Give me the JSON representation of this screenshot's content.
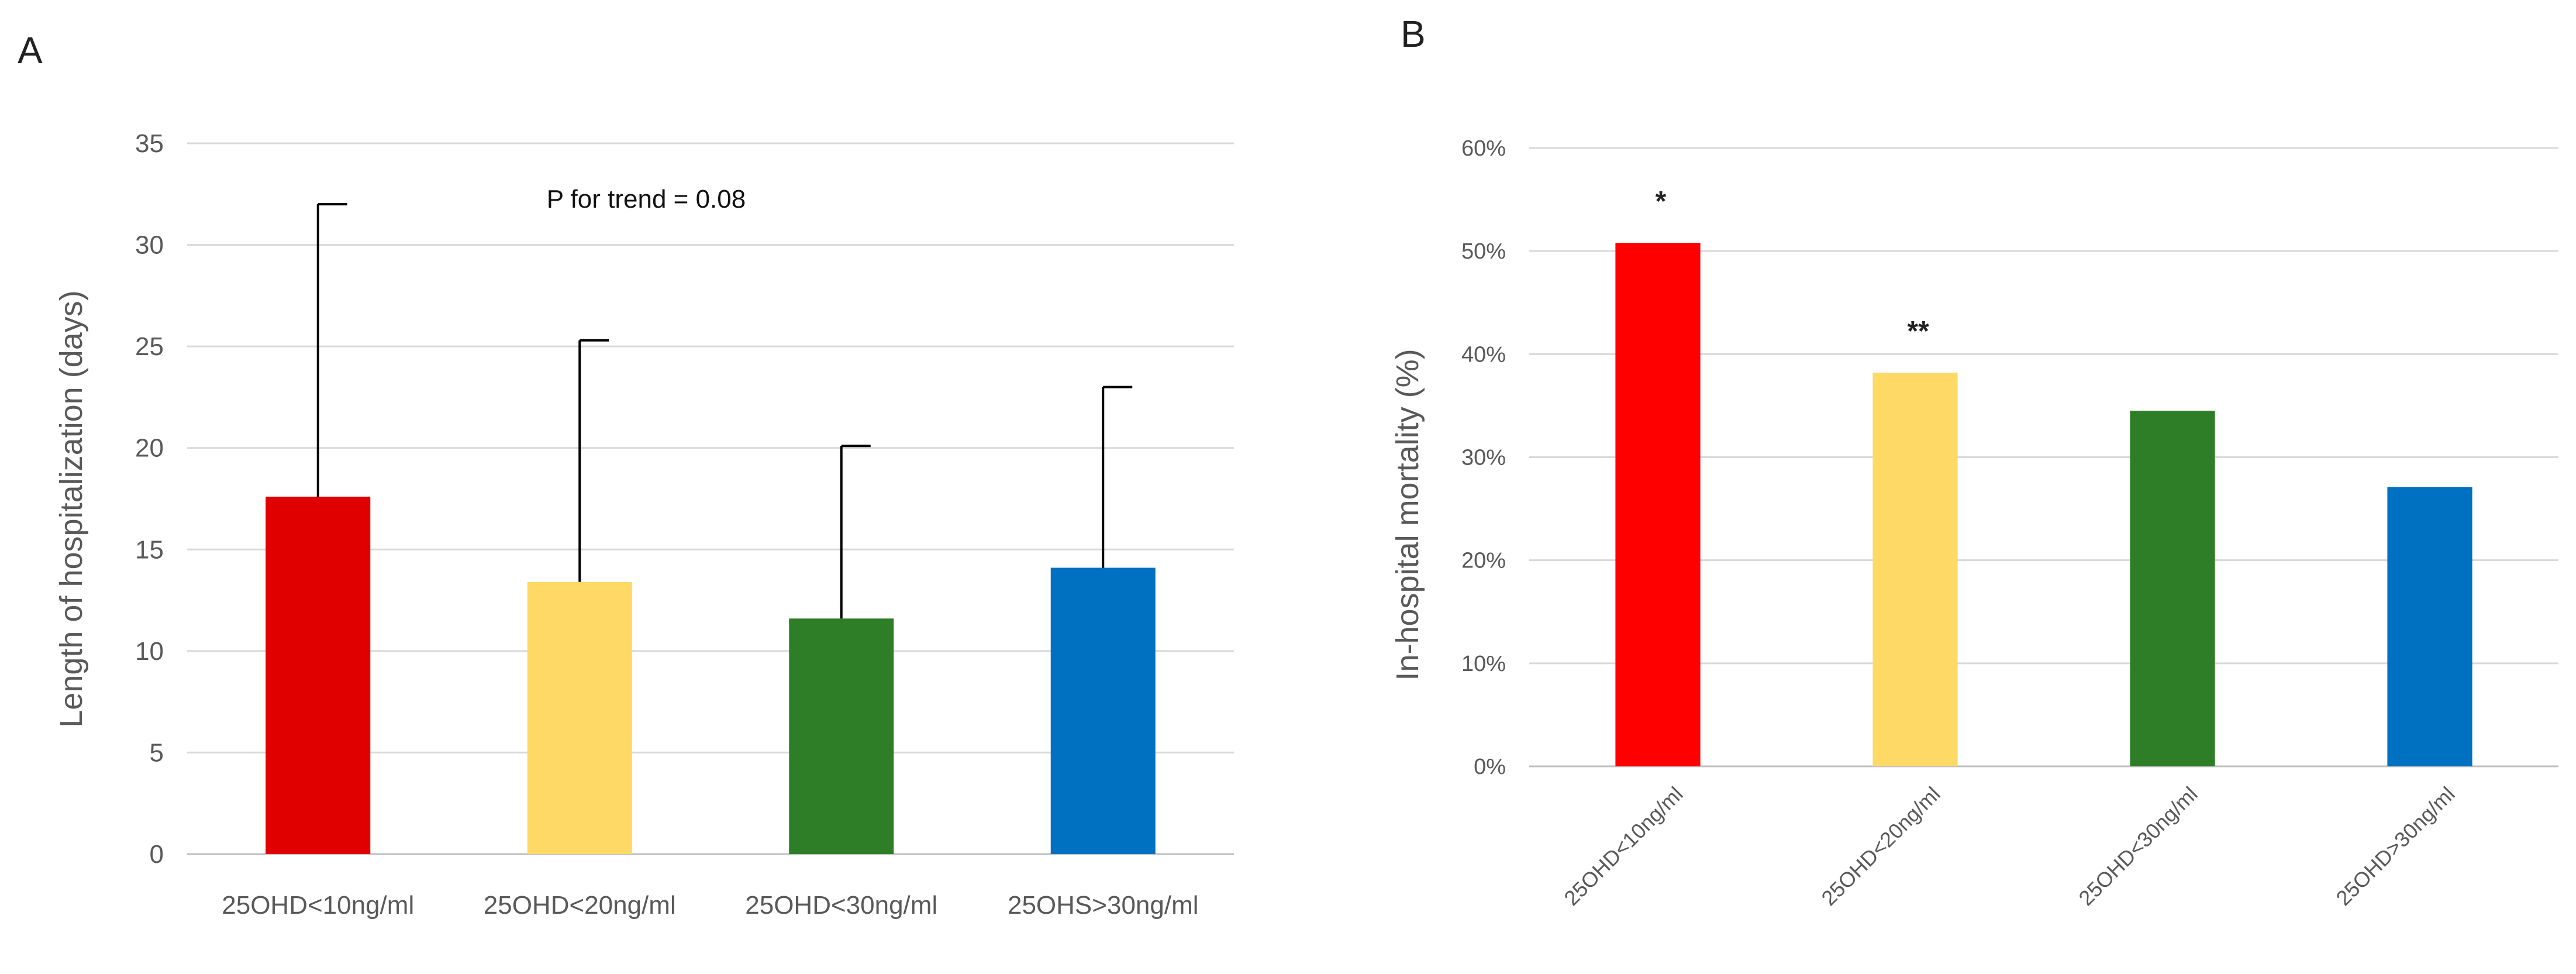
{
  "chart_data": [
    {
      "panel": "A",
      "type": "bar",
      "title": "",
      "xlabel": "",
      "ylabel": "Length of hospitalization (days)",
      "ylim": [
        0,
        35
      ],
      "yticks": [
        0,
        5,
        10,
        15,
        20,
        25,
        30,
        35
      ],
      "grid": true,
      "categories": [
        "25OHD<10ng/ml",
        "25OHD<20ng/ml",
        "25OHD<30ng/ml",
        "25OHS>30ng/ml"
      ],
      "values": [
        17.6,
        13.4,
        11.6,
        14.1
      ],
      "error_upper": [
        32.0,
        25.3,
        20.1,
        23.0
      ],
      "colors": [
        "#e10000",
        "#ffd966",
        "#2e7d27",
        "#0070c0"
      ],
      "annotations": [
        "P for trend = 0.08"
      ]
    },
    {
      "panel": "B",
      "type": "bar",
      "title": "",
      "xlabel": "",
      "ylabel": "In-hospital mortality (%)",
      "ylim": [
        0,
        60
      ],
      "yticks": [
        0,
        10,
        20,
        30,
        40,
        50,
        60
      ],
      "ytick_labels": [
        "0%",
        "10%",
        "20%",
        "30%",
        "40%",
        "50%",
        "60%"
      ],
      "grid": true,
      "categories": [
        "25OHD<10ng/ml",
        "25OHD<20ng/ml",
        "25OHD<30ng/ml",
        "25OHD>30ng/ml"
      ],
      "values": [
        50.8,
        38.2,
        34.5,
        27.1
      ],
      "colors": [
        "#ff0000",
        "#ffd966",
        "#2e7d27",
        "#0070c0"
      ],
      "significance": [
        "*",
        "**",
        "",
        ""
      ]
    }
  ]
}
